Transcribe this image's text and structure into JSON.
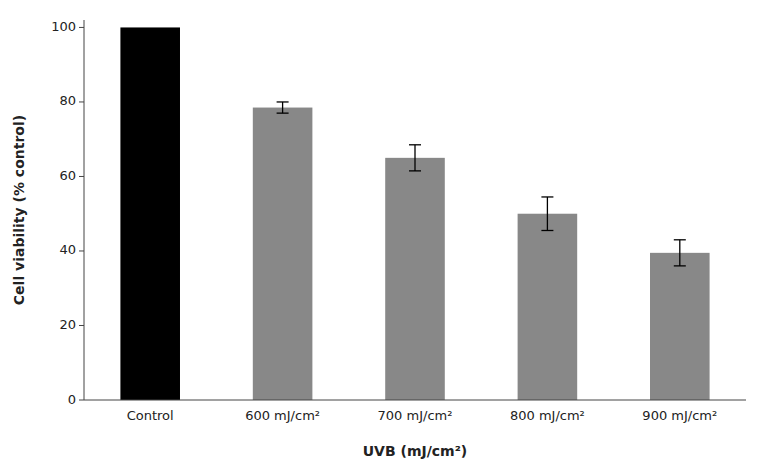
{
  "chart_data": {
    "type": "bar",
    "categories": [
      "Control",
      "600 mJ/cm²",
      "700 mJ/cm²",
      "800 mJ/cm²",
      "900 mJ/cm²"
    ],
    "values": [
      100,
      78.5,
      65.0,
      50.0,
      39.5
    ],
    "errors": [
      0,
      1.5,
      3.5,
      4.5,
      3.5
    ],
    "colors": [
      "#000000",
      "#888888",
      "#888888",
      "#888888",
      "#888888"
    ],
    "xlabel": "UVB (mJ/cm²)",
    "ylabel": "Cell viability (% control)",
    "ylim": [
      0,
      102
    ],
    "yticks": [
      0,
      20,
      40,
      60,
      80,
      100
    ],
    "grid": false
  }
}
